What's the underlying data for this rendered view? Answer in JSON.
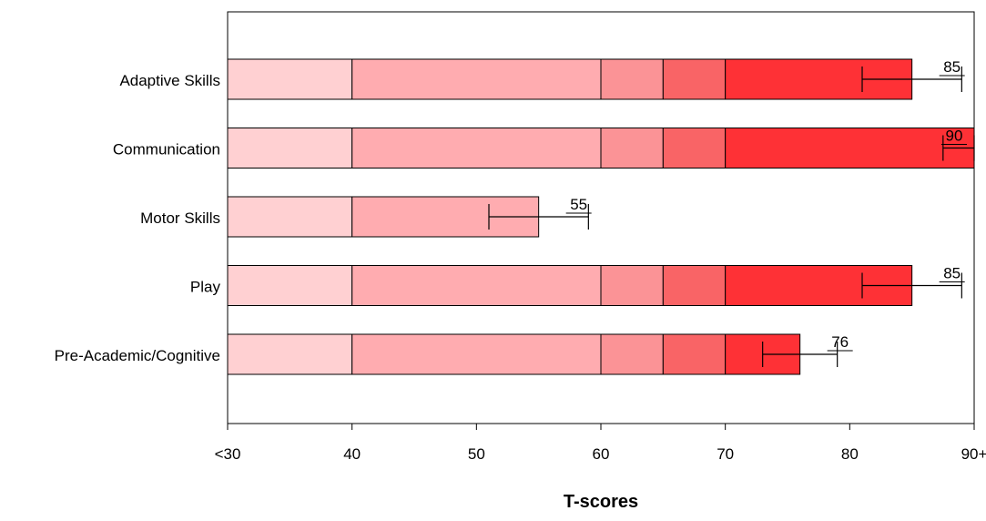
{
  "chart_data": {
    "type": "bar",
    "orientation": "horizontal",
    "stacked_bands": true,
    "xlabel": "T-scores",
    "ylabel": "",
    "title": "",
    "x_ticks": [
      "<30",
      "40",
      "50",
      "60",
      "70",
      "80",
      "90+"
    ],
    "xlim": [
      30,
      90
    ],
    "grid": false,
    "band_edges": [
      30,
      40,
      60,
      65,
      70,
      90
    ],
    "band_colors": [
      "#ffd0d2",
      "#ffacb0",
      "#fb9396",
      "#f96466",
      "#fe3136"
    ],
    "categories": [
      "Adaptive Skills",
      "Communication",
      "Motor Skills",
      "Play",
      "Pre-Academic/Cognitive"
    ],
    "values": [
      85,
      90,
      55,
      85,
      76
    ],
    "value_labels": [
      "85",
      "90",
      "55",
      "85",
      "76"
    ],
    "error_bars": [
      [
        81,
        89
      ],
      [
        87.5,
        90
      ],
      [
        51,
        59
      ],
      [
        81,
        89
      ],
      [
        73,
        79
      ]
    ]
  }
}
